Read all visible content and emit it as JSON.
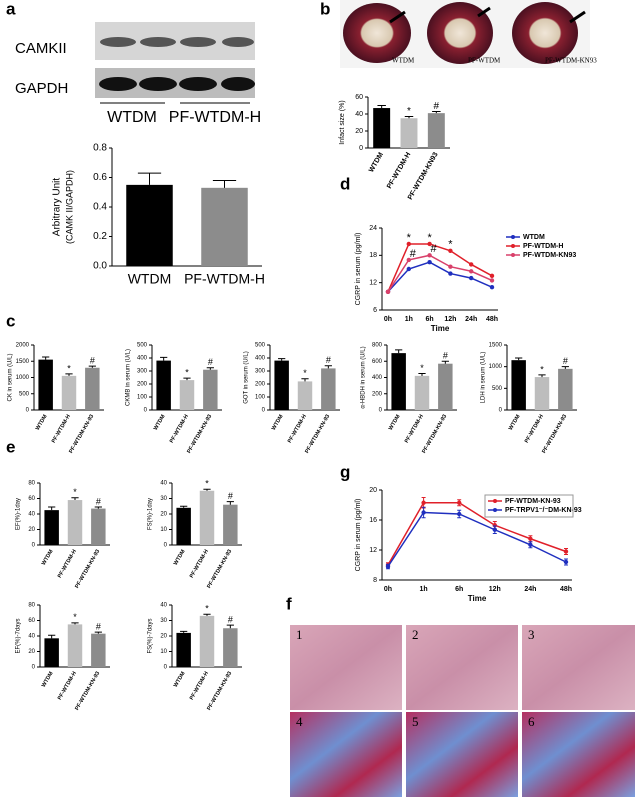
{
  "panel_labels": [
    "a",
    "b",
    "c",
    "d",
    "e",
    "f",
    "g"
  ],
  "blot": {
    "bands": [
      "CAMKII",
      "GAPDH"
    ],
    "groups": [
      "WTDM",
      "PF-WTDM-H"
    ]
  },
  "heart_labels": [
    "WTDM",
    "PF-WTDM",
    "PF-WTDM-KN93"
  ],
  "histology_labels": [
    "1",
    "2",
    "3",
    "4",
    "5",
    "6"
  ],
  "chart_data": [
    {
      "type": "bar",
      "y_label": [
        "Arbitrary Unit",
        "(CAMK II/GAPDH)"
      ],
      "categories": [
        "WTDM",
        "PF-WTDM-H"
      ],
      "values": [
        0.55,
        0.53
      ],
      "errors": [
        0.08,
        0.05
      ],
      "colors": [
        "#000000",
        "#8c8c8c"
      ],
      "ylim": [
        0,
        0.8
      ],
      "yticks": [
        {
          "value": 0,
          "label": "0.0"
        },
        0.2,
        0.4,
        0.6,
        0.8
      ]
    },
    {
      "type": "bar",
      "y_label": "Infact size (%)",
      "categories": [
        "WTDM",
        "PF-WTDM-H",
        "PF-WTDM-KN93"
      ],
      "values": [
        47,
        35,
        41
      ],
      "errors": [
        3,
        2,
        2
      ],
      "annotations": [
        null,
        "*",
        "#"
      ],
      "colors": [
        "#000000",
        "#bdbdbd",
        "#8c8c8c"
      ],
      "ylim": [
        0,
        60
      ],
      "yticks": [
        0,
        20,
        40,
        60
      ]
    },
    {
      "type": "line",
      "y_label": "CGRP in serum (pg/ml)",
      "x_label": "Time",
      "categories": [
        "0h",
        "1h",
        "6h",
        "12h",
        "24h",
        "48h"
      ],
      "ylim": [
        6,
        24
      ],
      "yticks": [
        6,
        12,
        18,
        24
      ],
      "series": [
        {
          "name": "WTDM",
          "color": "#1f2fbf",
          "values": [
            10,
            15,
            16.5,
            14,
            13,
            11
          ]
        },
        {
          "name": "PF-WTDM-H",
          "color": "#e0202a",
          "values": [
            10,
            20.5,
            20.5,
            19,
            16,
            13.5
          ],
          "annotations": [
            null,
            "*",
            "*",
            "*",
            null,
            null
          ]
        },
        {
          "name": "PF-WTDM-KN93",
          "color": "#d9406a",
          "values": [
            10,
            17,
            18,
            15.5,
            14.5,
            12.5
          ],
          "annotations": [
            null,
            "#",
            "#",
            null,
            null,
            null
          ]
        }
      ]
    },
    {
      "type": "bar",
      "y_label": "CK in serum (U/L)",
      "categories": [
        "WTDM",
        "PF-WTDM-H",
        "PF-WTDM-KN-93"
      ],
      "values": [
        1550,
        1050,
        1300
      ],
      "errors": [
        80,
        60,
        50
      ],
      "annotations": [
        null,
        "*",
        "#"
      ],
      "colors": [
        "#000000",
        "#bdbdbd",
        "#8c8c8c"
      ],
      "ylim": [
        0,
        2000
      ],
      "yticks": [
        0,
        500,
        1000,
        1500,
        2000
      ]
    },
    {
      "type": "bar",
      "y_label": "CKMB in serum (U/L)",
      "categories": [
        "WTDM",
        "PF-WTDM-H",
        "PF-WTDM-KN-93"
      ],
      "values": [
        380,
        230,
        310
      ],
      "errors": [
        25,
        15,
        15
      ],
      "annotations": [
        null,
        "*",
        "#"
      ],
      "colors": [
        "#000000",
        "#bdbdbd",
        "#8c8c8c"
      ],
      "ylim": [
        0,
        500
      ],
      "yticks": [
        0,
        100,
        200,
        300,
        400,
        500
      ]
    },
    {
      "type": "bar",
      "y_label": "GOT in serum (U/L)",
      "categories": [
        "WTDM",
        "PF-WTDM-H",
        "PF-WTDM-KN-93"
      ],
      "values": [
        380,
        220,
        320
      ],
      "errors": [
        15,
        20,
        20
      ],
      "annotations": [
        null,
        "*",
        "#"
      ],
      "colors": [
        "#000000",
        "#bdbdbd",
        "#8c8c8c"
      ],
      "ylim": [
        0,
        500
      ],
      "yticks": [
        0,
        100,
        200,
        300,
        400,
        500
      ]
    },
    {
      "type": "bar",
      "y_label": "α-HBDH in serum (U/L)",
      "categories": [
        "WTDM",
        "PF-WTDM-H",
        "PF-WTDM-KN-93"
      ],
      "values": [
        700,
        420,
        570
      ],
      "errors": [
        40,
        30,
        30
      ],
      "annotations": [
        null,
        "*",
        "#"
      ],
      "colors": [
        "#000000",
        "#bdbdbd",
        "#8c8c8c"
      ],
      "ylim": [
        0,
        800
      ],
      "yticks": [
        0,
        200,
        400,
        600,
        800
      ]
    },
    {
      "type": "bar",
      "y_label": "LDH in serum (U/L)",
      "categories": [
        "WTDM",
        "PF-WTDM-H",
        "PF-WTDM-KN-93"
      ],
      "values": [
        1150,
        760,
        950
      ],
      "errors": [
        50,
        50,
        50
      ],
      "annotations": [
        null,
        "*",
        "#"
      ],
      "colors": [
        "#000000",
        "#bdbdbd",
        "#8c8c8c"
      ],
      "ylim": [
        0,
        1500
      ],
      "yticks": [
        0,
        500,
        1000,
        1500
      ]
    },
    {
      "type": "bar",
      "y_label": "EF(%)-1day",
      "categories": [
        "WTDM",
        "PF-WTDM-H",
        "PF-WTDM-KN-93"
      ],
      "values": [
        45,
        58,
        47
      ],
      "errors": [
        4,
        3,
        2
      ],
      "annotations": [
        null,
        "*",
        "#"
      ],
      "colors": [
        "#000000",
        "#bdbdbd",
        "#8c8c8c"
      ],
      "ylim": [
        0,
        80
      ],
      "yticks": [
        0,
        20,
        40,
        60,
        80
      ]
    },
    {
      "type": "bar",
      "y_label": "FS(%)-1day",
      "categories": [
        "WTDM",
        "PF-WTDM-H",
        "PF-WTDM-KN-93"
      ],
      "values": [
        24,
        35,
        26
      ],
      "errors": [
        1,
        1,
        2
      ],
      "annotations": [
        null,
        "*",
        "#"
      ],
      "colors": [
        "#000000",
        "#bdbdbd",
        "#8c8c8c"
      ],
      "ylim": [
        0,
        40
      ],
      "yticks": [
        0,
        10,
        20,
        30,
        40
      ]
    },
    {
      "type": "bar",
      "y_label": "EF(%)-7days",
      "categories": [
        "WTDM",
        "PF-WTDM-H",
        "PF-WTDM-KN-93"
      ],
      "values": [
        37,
        55,
        43
      ],
      "errors": [
        4,
        2,
        2
      ],
      "annotations": [
        null,
        "*",
        "#"
      ],
      "colors": [
        "#000000",
        "#bdbdbd",
        "#8c8c8c"
      ],
      "ylim": [
        0,
        80
      ],
      "yticks": [
        0,
        20,
        40,
        60,
        80
      ]
    },
    {
      "type": "bar",
      "y_label": "FS(%)-7days",
      "categories": [
        "WTDM",
        "PF-WTDM-H",
        "PF-WTDM-KN-93"
      ],
      "values": [
        22,
        33,
        25
      ],
      "errors": [
        1,
        1,
        2
      ],
      "annotations": [
        null,
        "*",
        "#"
      ],
      "colors": [
        "#000000",
        "#bdbdbd",
        "#8c8c8c"
      ],
      "ylim": [
        0,
        40
      ],
      "yticks": [
        0,
        10,
        20,
        30,
        40
      ]
    },
    {
      "type": "line",
      "y_label": "CGRP in serum (pg/ml)",
      "x_label": "Time",
      "categories": [
        "0h",
        "1h",
        "6h",
        "12h",
        "24h",
        "48h"
      ],
      "ylim": [
        8,
        20
      ],
      "yticks": [
        8,
        12,
        16,
        20
      ],
      "series": [
        {
          "name": "PF-WTDM-KN-93",
          "color": "#e0202a",
          "values": [
            10,
            18.3,
            18.3,
            15.3,
            13.5,
            11.8
          ],
          "errors": [
            0.3,
            0.7,
            0.4,
            0.5,
            0.4,
            0.4
          ]
        },
        {
          "name": "PF-TRPV1⁻/⁻DM-KN-93",
          "color": "#1f2fbf",
          "values": [
            9.8,
            17,
            16.8,
            14.7,
            12.7,
            10.4
          ],
          "errors": [
            0.3,
            0.7,
            0.5,
            0.5,
            0.4,
            0.4
          ]
        }
      ]
    }
  ]
}
